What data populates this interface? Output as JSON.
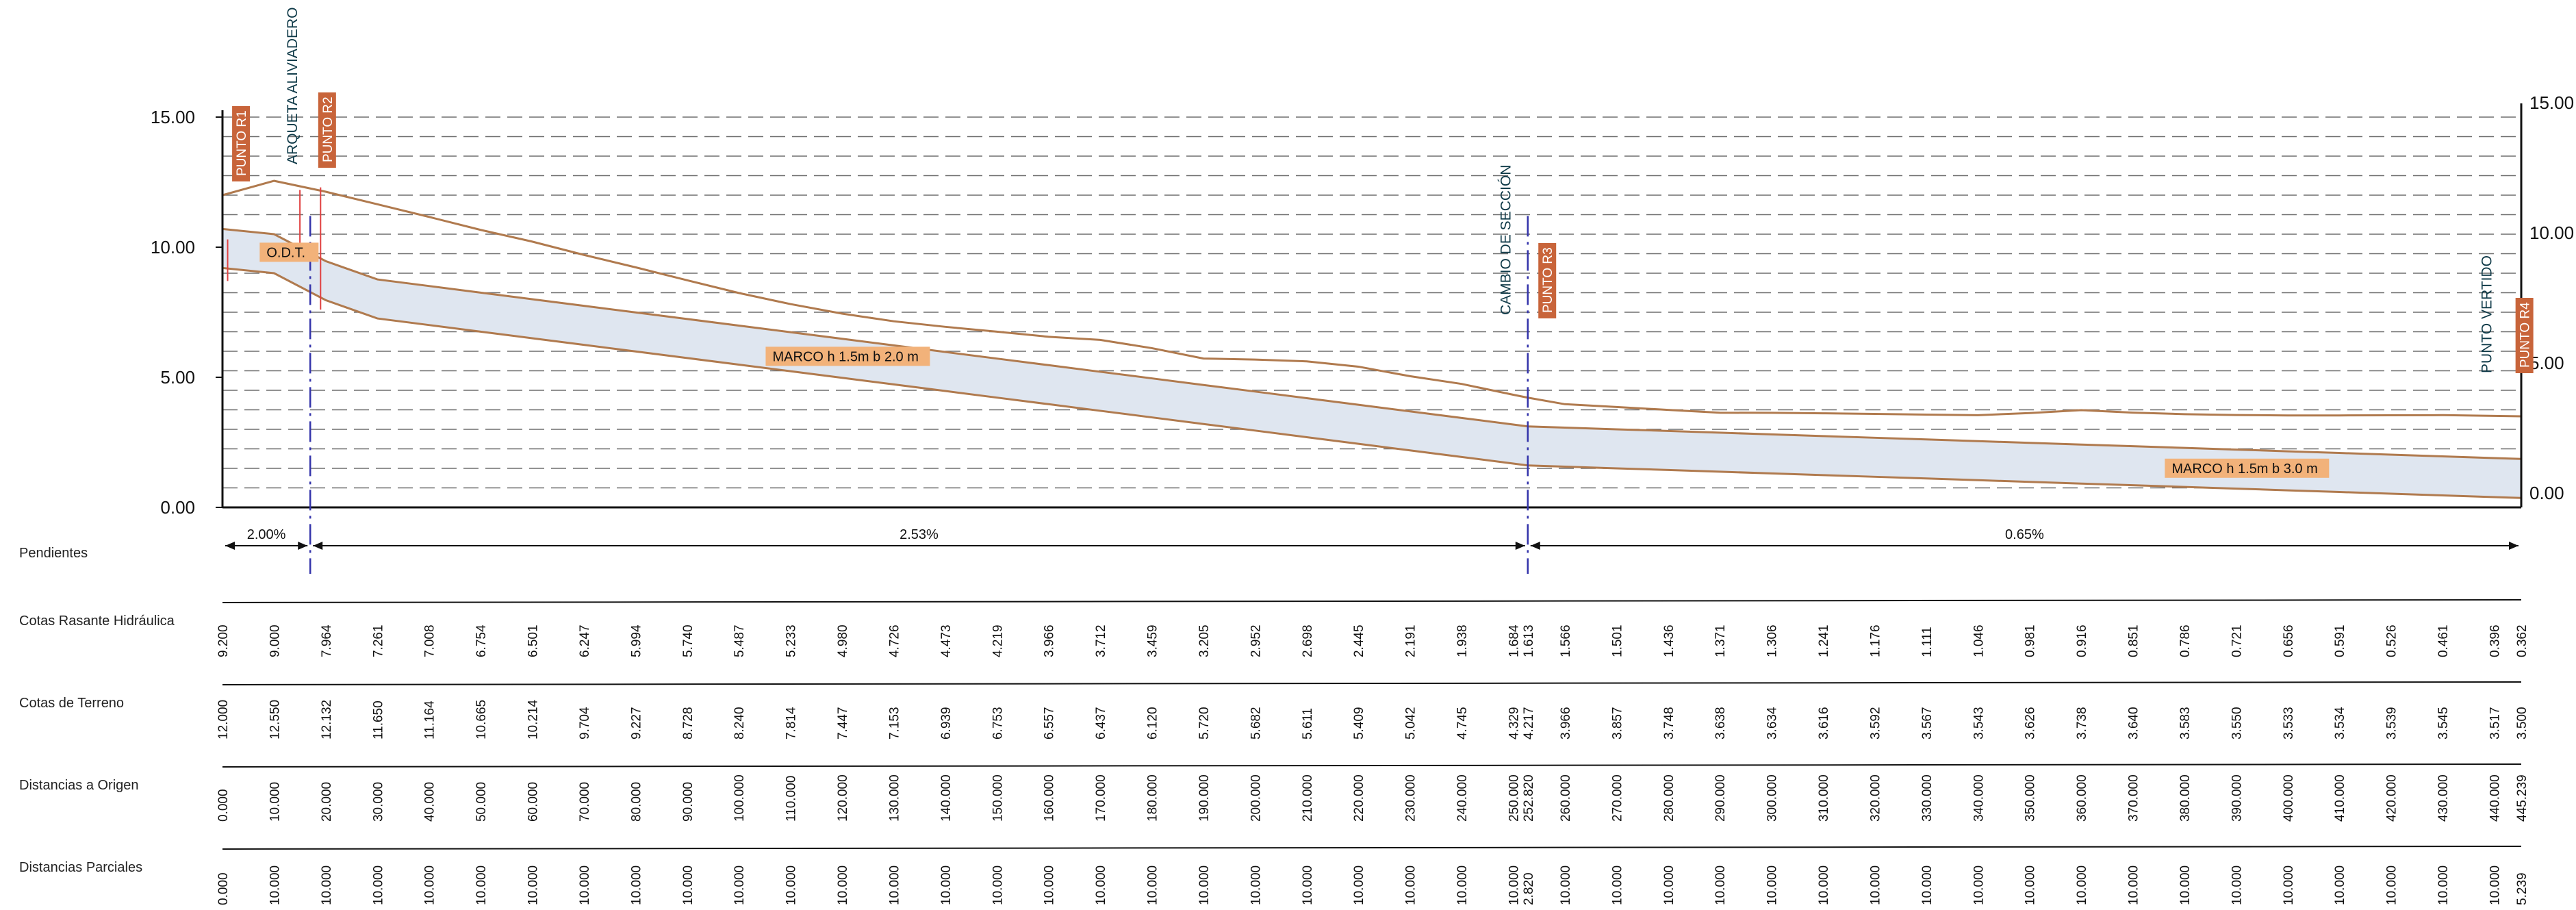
{
  "chart_data": {
    "type": "line",
    "title": "",
    "ylim": [
      0,
      15
    ],
    "y_ticks": [
      "0.00",
      "5.00",
      "10.00",
      "15.00"
    ],
    "x_max": 445.239,
    "series": [
      {
        "name": "",
        "role": "terrain",
        "x": [
          0,
          10,
          20,
          30,
          40,
          50,
          60,
          70,
          80,
          90,
          100,
          110,
          120,
          130,
          140,
          150,
          160,
          170,
          180,
          190,
          200,
          210,
          220,
          230,
          240,
          250,
          252.82,
          260,
          270,
          280,
          290,
          300,
          310,
          320,
          330,
          340,
          350,
          360,
          370,
          380,
          390,
          400,
          410,
          420,
          430,
          440,
          445.239
        ],
        "y": [
          12.0,
          12.55,
          12.132,
          11.65,
          11.164,
          10.665,
          10.214,
          9.704,
          9.227,
          8.728,
          8.24,
          7.814,
          7.447,
          7.153,
          6.939,
          6.753,
          6.557,
          6.437,
          6.12,
          5.72,
          5.682,
          5.611,
          5.409,
          5.042,
          4.745,
          4.329,
          4.217,
          3.966,
          3.857,
          3.748,
          3.638,
          3.634,
          3.616,
          3.592,
          3.567,
          3.543,
          3.626,
          3.738,
          3.64,
          3.583,
          3.55,
          3.533,
          3.534,
          3.539,
          3.545,
          3.517,
          3.5
        ]
      },
      {
        "name": "",
        "role": "hydraulic",
        "x": [
          0,
          10,
          20,
          30,
          40,
          50,
          60,
          70,
          80,
          90,
          100,
          110,
          120,
          130,
          140,
          150,
          160,
          170,
          180,
          190,
          200,
          210,
          220,
          230,
          240,
          250,
          252.82,
          260,
          270,
          280,
          290,
          300,
          310,
          320,
          330,
          340,
          350,
          360,
          370,
          380,
          390,
          400,
          410,
          420,
          430,
          440,
          445.239
        ],
        "y": [
          9.2,
          9.0,
          7.964,
          7.261,
          7.008,
          6.754,
          6.501,
          6.247,
          5.994,
          5.74,
          5.487,
          5.233,
          4.98,
          4.726,
          4.473,
          4.219,
          3.966,
          3.712,
          3.459,
          3.205,
          2.952,
          2.698,
          2.445,
          2.191,
          1.938,
          1.684,
          1.613,
          1.566,
          1.501,
          1.436,
          1.371,
          1.306,
          1.241,
          1.176,
          1.111,
          1.046,
          0.981,
          0.916,
          0.851,
          0.786,
          0.721,
          0.656,
          0.591,
          0.526,
          0.461,
          0.396,
          0.362
        ]
      }
    ],
    "slopes": [
      {
        "label": "2.00%",
        "from": 0,
        "to": 17
      },
      {
        "label": "2.53%",
        "from": 17,
        "to": 252.82
      },
      {
        "label": "0.65%",
        "from": 252.82,
        "to": 445.239
      }
    ],
    "annotations": [
      {
        "label": "O.D.T.",
        "x": 8,
        "y": 9.7
      },
      {
        "label": "MARCO h 1.5m b 2.0 m",
        "x": 106,
        "y": 5.7
      },
      {
        "label": "MARCO h 1.5m b 3.0 m",
        "x": 377,
        "y": 1.4
      }
    ],
    "vertical_labels": [
      {
        "label": "ARQUETA ALIVIADERO",
        "x": 15
      },
      {
        "label": "CAMBIO DE SECCIÓN",
        "x": 250
      },
      {
        "label": "PUNTO VERTIDO",
        "x": 440
      }
    ],
    "puntos": [
      {
        "label": "PUNTO R1",
        "x": 2
      },
      {
        "label": "PUNTO R2",
        "x": 20
      },
      {
        "label": "PUNTO R3",
        "x": 255
      },
      {
        "label": "PUNTO R4",
        "x": 444
      }
    ],
    "table": {
      "row_labels": [
        "Pendientes",
        "Cotas Rasante Hidráulica",
        "Cotas de Terreno",
        "Distancias a Origen",
        "Distancias Parciales"
      ],
      "rasante": [
        "9.200",
        "9.000",
        "7.964",
        "7.261",
        "7.008",
        "6.754",
        "6.501",
        "6.247",
        "5.994",
        "5.740",
        "5.487",
        "5.233",
        "4.980",
        "4.726",
        "4.473",
        "4.219",
        "3.966",
        "3.712",
        "3.459",
        "3.205",
        "2.952",
        "2.698",
        "2.445",
        "2.191",
        "1.938",
        "1.684",
        "1.613",
        "1.566",
        "1.501",
        "1.436",
        "1.371",
        "1.306",
        "1.241",
        "1.176",
        "1.111",
        "1.046",
        "0.981",
        "0.916",
        "0.851",
        "0.786",
        "0.721",
        "0.656",
        "0.591",
        "0.526",
        "0.461",
        "0.396",
        "0.362"
      ],
      "terreno": [
        "12.000",
        "12.550",
        "12.132",
        "11.650",
        "11.164",
        "10.665",
        "10.214",
        "9.704",
        "9.227",
        "8.728",
        "8.240",
        "7.814",
        "7.447",
        "7.153",
        "6.939",
        "6.753",
        "6.557",
        "6.437",
        "6.120",
        "5.720",
        "5.682",
        "5.611",
        "5.409",
        "5.042",
        "4.745",
        "4.329",
        "4.217",
        "3.966",
        "3.857",
        "3.748",
        "3.638",
        "3.634",
        "3.616",
        "3.592",
        "3.567",
        "3.543",
        "3.626",
        "3.738",
        "3.640",
        "3.583",
        "3.550",
        "3.533",
        "3.534",
        "3.539",
        "3.545",
        "3.517",
        "3.500"
      ],
      "origen": [
        "0.000",
        "10.000",
        "20.000",
        "30.000",
        "40.000",
        "50.000",
        "60.000",
        "70.000",
        "80.000",
        "90.000",
        "100.000",
        "110.000",
        "120.000",
        "130.000",
        "140.000",
        "150.000",
        "160.000",
        "170.000",
        "180.000",
        "190.000",
        "200.000",
        "210.000",
        "220.000",
        "230.000",
        "240.000",
        "250.000",
        "252.820",
        "260.000",
        "270.000",
        "280.000",
        "290.000",
        "300.000",
        "310.000",
        "320.000",
        "330.000",
        "340.000",
        "350.000",
        "360.000",
        "370.000",
        "380.000",
        "390.000",
        "400.000",
        "410.000",
        "420.000",
        "430.000",
        "440.000",
        "445.239"
      ],
      "parciales": [
        "0.000",
        "10.000",
        "10.000",
        "10.000",
        "10.000",
        "10.000",
        "10.000",
        "10.000",
        "10.000",
        "10.000",
        "10.000",
        "10.000",
        "10.000",
        "10.000",
        "10.000",
        "10.000",
        "10.000",
        "10.000",
        "10.000",
        "10.000",
        "10.000",
        "10.000",
        "10.000",
        "10.000",
        "10.000",
        "10.000",
        "2.820",
        "10.000",
        "10.000",
        "10.000",
        "10.000",
        "10.000",
        "10.000",
        "10.000",
        "10.000",
        "10.000",
        "10.000",
        "10.000",
        "10.000",
        "10.000",
        "10.000",
        "10.000",
        "10.000",
        "10.000",
        "10.000",
        "10.000",
        "5.239"
      ]
    },
    "colors": {
      "terrain": "#b07a4e",
      "structure": "#b07a4e",
      "fill": "#dfe6f0",
      "dashed": "#6f6f6f",
      "punto_bg": "#c8643a",
      "tag_bg": "#f2b27a",
      "axis_vline": "#3333aa",
      "red_line": "#e04040",
      "vlabel": "#0f3a48"
    }
  }
}
